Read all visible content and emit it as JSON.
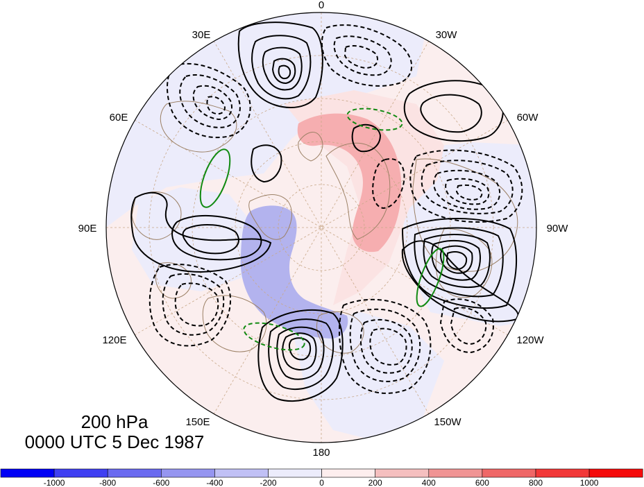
{
  "title": {
    "level": "200 hPa",
    "time": "0000 UTC 5 Dec 1987"
  },
  "longitude_labels": [
    "0",
    "30W",
    "60W",
    "90W",
    "120W",
    "150W",
    "180",
    "150E",
    "120E",
    "90E",
    "60E",
    "30E"
  ],
  "colorbar": {
    "tick_labels": [
      "-1000",
      "-800",
      "-600",
      "-400",
      "-200",
      "0",
      "200",
      "400",
      "600",
      "800",
      "1000"
    ],
    "colors": [
      "#0000f5",
      "#3f3ff2",
      "#6a6af0",
      "#9595f0",
      "#c0c0f5",
      "#ececfb",
      "#fdeeee",
      "#f5bfbf",
      "#f09494",
      "#ef6767",
      "#f23838",
      "#f50b0b"
    ]
  },
  "colors": {
    "positive_fill": "#f6aeb0",
    "negative_fill": "#b3b3ee",
    "background_pos": "#fcecec",
    "background_neg": "#ebebfb",
    "coastline": "#9c8166",
    "grid": "#c8a888",
    "contour": "#000000",
    "highlight": "#118a11"
  }
}
